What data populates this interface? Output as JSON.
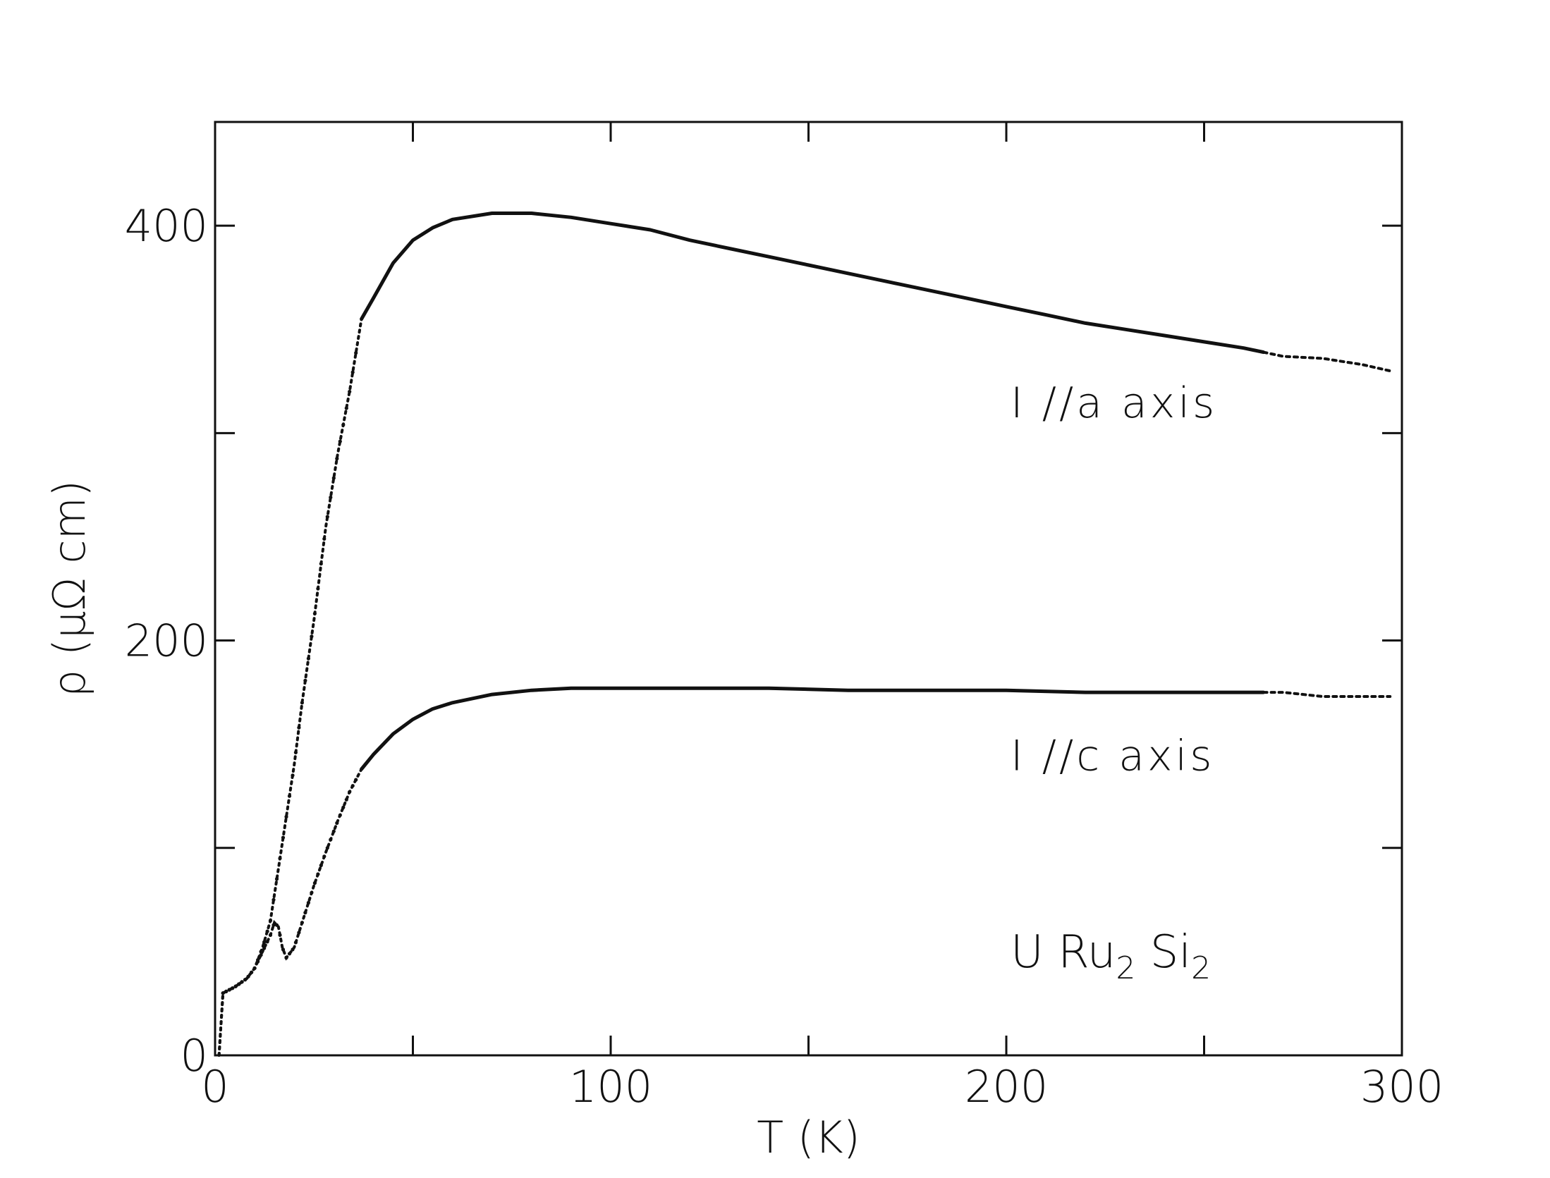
{
  "chart_data": {
    "type": "line",
    "title": "",
    "xlabel": "T (K)",
    "ylabel": "ρ (μΩ cm)",
    "xlim": [
      0,
      300
    ],
    "ylim": [
      0,
      450
    ],
    "xticks": [
      0,
      100,
      200,
      300
    ],
    "xtick_labels": [
      "0",
      "100",
      "200",
      "300"
    ],
    "yticks": [
      0,
      200,
      400
    ],
    "ytick_labels": [
      "0",
      "200",
      "400"
    ],
    "grid": false,
    "series": [
      {
        "name": "I //a axis",
        "color": "#111111",
        "points": [
          [
            1,
            0
          ],
          [
            2,
            30
          ],
          [
            5,
            33
          ],
          [
            8,
            37
          ],
          [
            10,
            42
          ],
          [
            12,
            52
          ],
          [
            14,
            65
          ],
          [
            16,
            90
          ],
          [
            18,
            115
          ],
          [
            20,
            140
          ],
          [
            22,
            170
          ],
          [
            25,
            210
          ],
          [
            28,
            255
          ],
          [
            31,
            290
          ],
          [
            34,
            320
          ],
          [
            37,
            355
          ],
          [
            40,
            365
          ],
          [
            45,
            382
          ],
          [
            50,
            393
          ],
          [
            55,
            399
          ],
          [
            60,
            403
          ],
          [
            70,
            406
          ],
          [
            80,
            406
          ],
          [
            90,
            404
          ],
          [
            100,
            401
          ],
          [
            110,
            398
          ],
          [
            120,
            393
          ],
          [
            130,
            389
          ],
          [
            140,
            385
          ],
          [
            150,
            381
          ],
          [
            160,
            377
          ],
          [
            170,
            373
          ],
          [
            180,
            369
          ],
          [
            190,
            365
          ],
          [
            200,
            361
          ],
          [
            210,
            357
          ],
          [
            220,
            353
          ],
          [
            230,
            350
          ],
          [
            240,
            347
          ],
          [
            250,
            344
          ],
          [
            260,
            341
          ],
          [
            265,
            339
          ],
          [
            270,
            337
          ],
          [
            280,
            336
          ],
          [
            290,
            333
          ],
          [
            297,
            330
          ]
        ]
      },
      {
        "name": "I //c axis",
        "color": "#111111",
        "points": [
          [
            1,
            0
          ],
          [
            2,
            30
          ],
          [
            5,
            33
          ],
          [
            8,
            37
          ],
          [
            10,
            42
          ],
          [
            12,
            50
          ],
          [
            14,
            58
          ],
          [
            15,
            64
          ],
          [
            16,
            62
          ],
          [
            17,
            52
          ],
          [
            18,
            47
          ],
          [
            20,
            52
          ],
          [
            22,
            64
          ],
          [
            25,
            82
          ],
          [
            28,
            98
          ],
          [
            31,
            113
          ],
          [
            34,
            127
          ],
          [
            37,
            138
          ],
          [
            40,
            145
          ],
          [
            45,
            155
          ],
          [
            50,
            162
          ],
          [
            55,
            167
          ],
          [
            60,
            170
          ],
          [
            70,
            174
          ],
          [
            80,
            176
          ],
          [
            90,
            177
          ],
          [
            100,
            177
          ],
          [
            120,
            177
          ],
          [
            140,
            177
          ],
          [
            160,
            176
          ],
          [
            180,
            176
          ],
          [
            200,
            176
          ],
          [
            220,
            175
          ],
          [
            240,
            175
          ],
          [
            260,
            175
          ],
          [
            265,
            175
          ],
          [
            270,
            175
          ],
          [
            280,
            173
          ],
          [
            290,
            173
          ],
          [
            297,
            173
          ]
        ]
      }
    ],
    "annotations": [
      {
        "text": "I //a axis",
        "x": 200,
        "y": 315
      },
      {
        "text": "I //c axis",
        "x": 200,
        "y": 145
      }
    ],
    "compound": {
      "parts": [
        {
          "text": "U Ru",
          "sub": false
        },
        {
          "text": "2",
          "sub": true
        },
        {
          "text": " Si",
          "sub": false
        },
        {
          "text": "2",
          "sub": true
        }
      ],
      "x": 200,
      "y": 50
    }
  }
}
